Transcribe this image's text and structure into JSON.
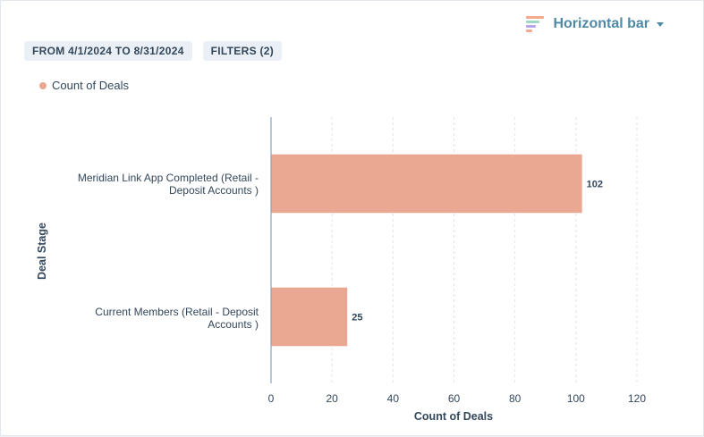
{
  "controls": {
    "date_range": "FROM 4/1/2024 TO 8/31/2024",
    "filters": "FILTERS (2)",
    "chart_type": "Horizontal bar"
  },
  "colors": {
    "bar": "#eaa892",
    "axis": "#8aa3bb",
    "grid": "#dfe3eb",
    "accent": "#4e8aa6",
    "text": "#33475b"
  },
  "chart_data": {
    "type": "bar",
    "orientation": "horizontal",
    "categories": [
      "Meridian Link App Completed (Retail - Deposit Accounts )",
      "Current Members (Retail - Deposit Accounts )"
    ],
    "series": [
      {
        "name": "Count of Deals",
        "values": [
          102,
          25
        ]
      }
    ],
    "data_labels": [
      "102",
      "25"
    ],
    "xlabel": "Count of Deals",
    "ylabel": "Deal Stage",
    "xlim": [
      0,
      120
    ],
    "xticks": [
      0,
      20,
      40,
      60,
      80,
      100,
      120
    ],
    "grid": "vertical",
    "legend": "top-left"
  }
}
